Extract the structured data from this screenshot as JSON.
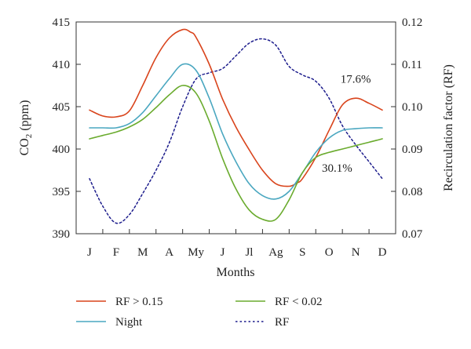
{
  "chart_data": {
    "type": "line",
    "xlabel": "Months",
    "ylabel_left_main": "CO",
    "ylabel_left_sub": "2",
    "ylabel_left_unit": " (ppm)",
    "ylabel_right": "Recirculation factor (RF)",
    "categories": [
      "J",
      "F",
      "M",
      "A",
      "My",
      "J",
      "Jl",
      "Ag",
      "S",
      "O",
      "N",
      "D"
    ],
    "ylim_left": [
      390,
      415
    ],
    "ylim_right": [
      0.07,
      0.12
    ],
    "yticks_left": [
      "390",
      "395",
      "400",
      "405",
      "410",
      "415"
    ],
    "yticks_right": [
      "0.07",
      "0.08",
      "0.09",
      "0.10",
      "0.11",
      "0.12"
    ],
    "annotations": [
      {
        "text": "17.6%",
        "x": 10.0,
        "y": 408.3
      },
      {
        "text": "30.1%",
        "x": 9.3,
        "y": 397.8
      }
    ],
    "series": [
      {
        "name": "RF > 0.15",
        "axis": "left",
        "color": "#d9441c",
        "dash": "solid",
        "x": [
          0,
          0.5,
          1,
          1.5,
          2,
          2.5,
          3,
          3.5,
          3.8,
          4,
          4.5,
          5,
          5.5,
          6,
          6.5,
          7,
          7.5,
          7.8,
          8,
          8.5,
          9,
          9.5,
          10,
          10.5,
          11
        ],
        "y": [
          404.6,
          403.9,
          403.8,
          404.5,
          407.5,
          410.8,
          413.1,
          414.1,
          413.8,
          413.2,
          410.0,
          405.9,
          402.6,
          399.9,
          397.5,
          395.9,
          395.6,
          396.0,
          396.5,
          399.0,
          402.2,
          405.2,
          406.0,
          405.4,
          404.6
        ]
      },
      {
        "name": "Night",
        "axis": "left",
        "color": "#4aa7c0",
        "dash": "solid",
        "x": [
          0,
          0.5,
          1,
          1.5,
          2,
          2.5,
          3,
          3.5,
          4,
          4.5,
          5,
          5.5,
          6,
          6.5,
          7,
          7.5,
          8,
          8.5,
          9,
          9.5,
          10,
          10.5,
          11
        ],
        "y": [
          402.5,
          402.5,
          402.5,
          403.0,
          404.3,
          406.3,
          408.3,
          410.0,
          409.3,
          406.0,
          401.8,
          398.5,
          395.9,
          394.5,
          394.1,
          395.0,
          397.2,
          399.6,
          401.3,
          402.2,
          402.4,
          402.5,
          402.5
        ]
      },
      {
        "name": "RF < 0.02",
        "axis": "left",
        "color": "#6aab2e",
        "dash": "solid",
        "x": [
          0,
          0.5,
          1,
          1.5,
          2,
          2.5,
          3,
          3.5,
          4,
          4.5,
          5,
          5.5,
          6,
          6.5,
          7,
          7.5,
          8,
          8.5,
          9,
          9.5,
          10,
          10.5,
          11
        ],
        "y": [
          401.2,
          401.6,
          402.0,
          402.6,
          403.5,
          404.9,
          406.4,
          407.5,
          406.6,
          403.3,
          398.9,
          395.3,
          392.8,
          391.7,
          391.7,
          394.0,
          397.2,
          399.0,
          399.6,
          400.0,
          400.4,
          400.8,
          401.2
        ]
      },
      {
        "name": "RF",
        "axis": "right",
        "color": "#1c1c8c",
        "dash": "dotted",
        "x": [
          0,
          0.5,
          1,
          1.5,
          2,
          2.5,
          3,
          3.5,
          4,
          4.5,
          5,
          5.5,
          6,
          6.5,
          7,
          7.5,
          8,
          8.5,
          9,
          9.5,
          10,
          10.5,
          11
        ],
        "y": [
          0.083,
          0.0765,
          0.0725,
          0.0745,
          0.0795,
          0.085,
          0.0915,
          0.1,
          0.1065,
          0.108,
          0.109,
          0.112,
          0.115,
          0.116,
          0.1145,
          0.1095,
          0.1075,
          0.106,
          0.102,
          0.0955,
          0.091,
          0.087,
          0.083
        ]
      }
    ],
    "legend_placement": "bottom",
    "grid": false
  }
}
